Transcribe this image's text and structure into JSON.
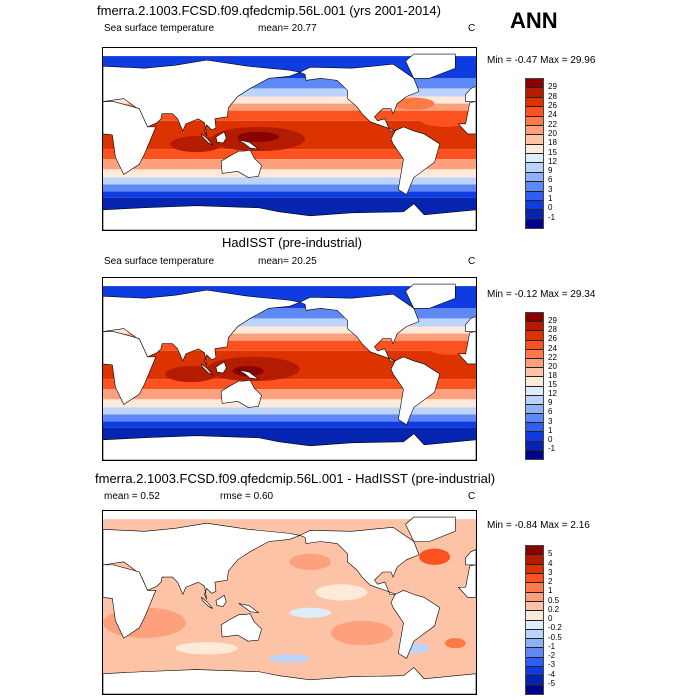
{
  "ann_label": "ANN",
  "chart_data": [
    {
      "type": "heatmap",
      "title": "fmerra.2.1003.FCSD.f09.qfedcmip.56L.001 (yrs 2001-2014)",
      "left_label": "Sea surface temperature",
      "stat_label": "mean=  20.77",
      "units": "C",
      "minmax": "Min =  -0.47 Max =  29.96",
      "min": -0.47,
      "max": 29.96,
      "mean": 20.77,
      "colorbar_levels": [
        "29",
        "28",
        "26",
        "24",
        "22",
        "20",
        "18",
        "15",
        "12",
        "9",
        "6",
        "3",
        "1",
        "0",
        "-1"
      ]
    },
    {
      "type": "heatmap",
      "title": "HadISST (pre-industrial)",
      "left_label": "Sea surface temperature",
      "stat_label": "mean=  20.25",
      "units": "C",
      "minmax": "Min =  -0.12 Max =  29.34",
      "min": -0.12,
      "max": 29.34,
      "mean": 20.25,
      "colorbar_levels": [
        "29",
        "28",
        "26",
        "24",
        "22",
        "20",
        "18",
        "15",
        "12",
        "9",
        "6",
        "3",
        "1",
        "0",
        "-1"
      ]
    },
    {
      "type": "heatmap",
      "title": "fmerra.2.1003.FCSD.f09.qfedcmip.56L.001 - HadISST (pre-industrial)",
      "left_label": "mean =   0.52",
      "stat_label": "rmse =   0.60",
      "units": "C",
      "minmax": "Min =  -0.84 Max =   2.16",
      "min": -0.84,
      "max": 2.16,
      "mean": 0.52,
      "rmse": 0.6,
      "colorbar_levels": [
        "5",
        "4",
        "3",
        "2",
        "1",
        "0.5",
        "0.2",
        "0",
        "-0.2",
        "-0.5",
        "-1",
        "-2",
        "-3",
        "-4",
        "-5"
      ]
    }
  ],
  "colors": [
    "#8a0000",
    "#b41c00",
    "#dc3300",
    "#fb5220",
    "#fb7a46",
    "#fca07e",
    "#fdc3a6",
    "#ffe9d8",
    "#deecfc",
    "#bcd3fc",
    "#8fb1f8",
    "#5e88f5",
    "#2e5ef4",
    "#0f3ce0",
    "#0525b0",
    "#00008c"
  ]
}
